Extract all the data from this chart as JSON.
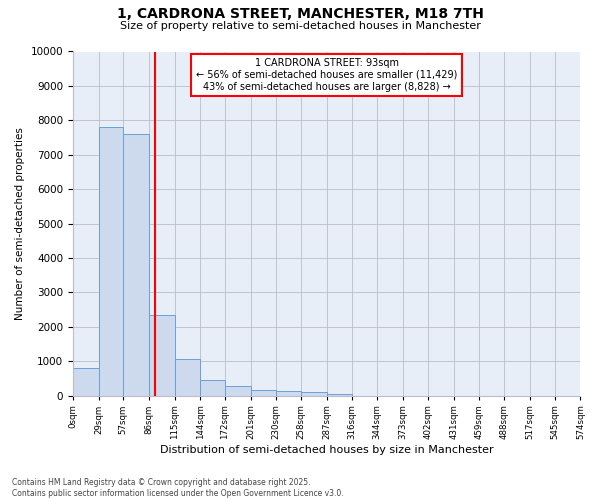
{
  "title_line1": "1, CARDRONA STREET, MANCHESTER, M18 7TH",
  "title_line2": "Size of property relative to semi-detached houses in Manchester",
  "xlabel": "Distribution of semi-detached houses by size in Manchester",
  "ylabel": "Number of semi-detached properties",
  "annotation_line1": "1 CARDRONA STREET: 93sqm",
  "annotation_line2": "← 56% of semi-detached houses are smaller (11,429)",
  "annotation_line3": "43% of semi-detached houses are larger (8,828) →",
  "footer_line1": "Contains HM Land Registry data © Crown copyright and database right 2025.",
  "footer_line2": "Contains public sector information licensed under the Open Government Licence v3.0.",
  "property_size": 93,
  "bin_edges": [
    0,
    29,
    57,
    86,
    115,
    144,
    172,
    201,
    230,
    258,
    287,
    316,
    344,
    373,
    402,
    431,
    459,
    488,
    517,
    545,
    574
  ],
  "bar_heights": [
    800,
    7800,
    7600,
    2350,
    1050,
    450,
    290,
    175,
    120,
    100,
    55,
    0,
    0,
    0,
    0,
    0,
    0,
    0,
    0,
    0
  ],
  "bar_color": "#cdd9ed",
  "bar_edge_color": "#6b9fd4",
  "vline_color": "red",
  "annotation_box_color": "red",
  "background_color": "#ffffff",
  "plot_bg_color": "#e8eef8",
  "ylim": [
    0,
    10000
  ],
  "yticks": [
    0,
    1000,
    2000,
    3000,
    4000,
    5000,
    6000,
    7000,
    8000,
    9000,
    10000
  ],
  "grid_color": "#bbbbcc"
}
